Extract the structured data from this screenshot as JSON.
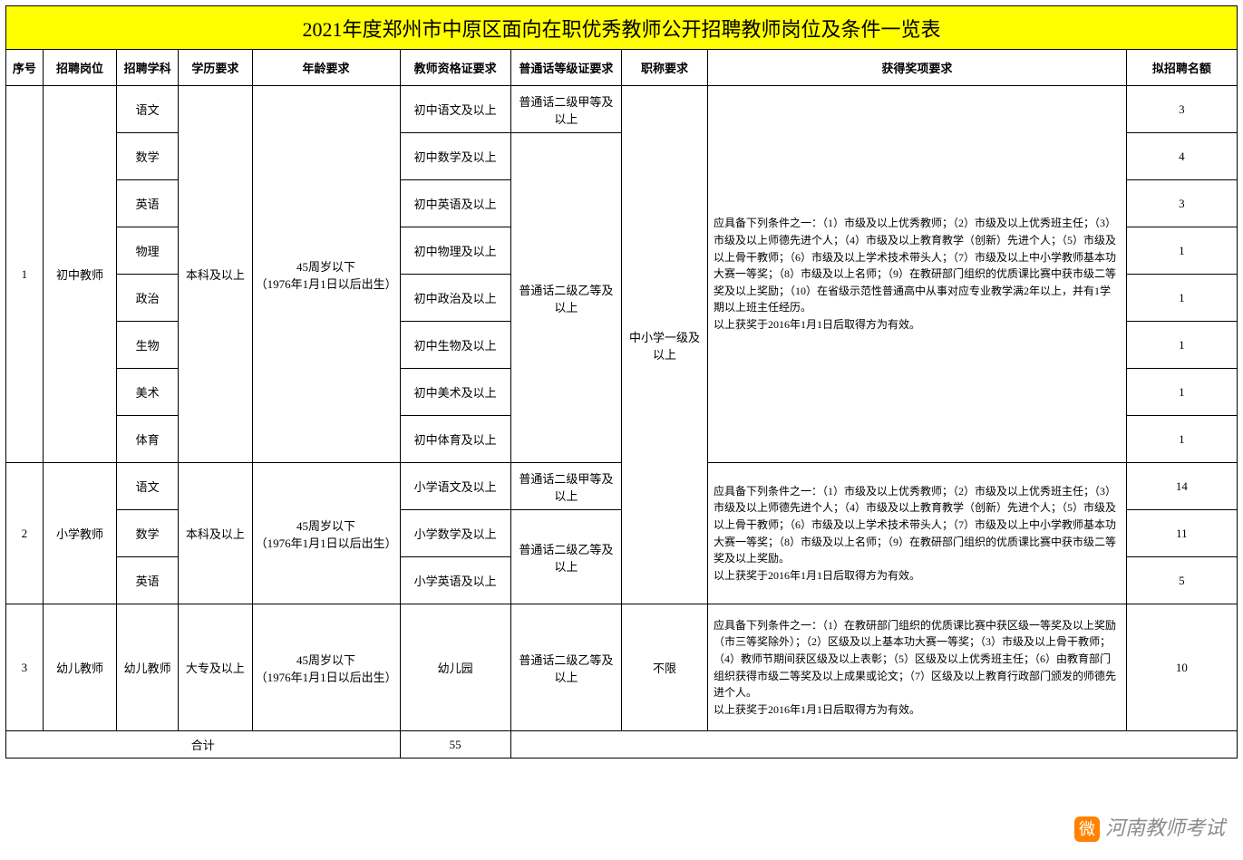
{
  "title": "2021年度郑州市中原区面向在职优秀教师公开招聘教师岗位及条件一览表",
  "columns": {
    "c1": "序号",
    "c2": "招聘岗位",
    "c3": "招聘学科",
    "c4": "学历要求",
    "c5": "年龄要求",
    "c6": "教师资格证要求",
    "c7": "普通话等级证要求",
    "c8": "职称要求",
    "c9": "获得奖项要求",
    "c10": "拟招聘名额"
  },
  "col_widths": {
    "c1": "3%",
    "c2": "6%",
    "c3": "5%",
    "c4": "6%",
    "c5": "12%",
    "c6": "9%",
    "c7": "9%",
    "c8": "7%",
    "c9": "34%",
    "c10": "9%"
  },
  "group1": {
    "seq": "1",
    "position": "初中教师",
    "edu": "本科及以上",
    "age": "45周岁以下\n（1976年1月1日以后出生）",
    "zhicheng": "中小学一级及以上",
    "award": "应具备下列条件之一：（1）市级及以上优秀教师；（2）市级及以上优秀班主任；（3）市级及以上师德先进个人；（4）市级及以上教育教学（创新）先进个人；（5）市级及以上骨干教师；（6）市级及以上学术技术带头人；（7）市级及以上中小学教师基本功大赛一等奖；（8）市级及以上名师；（9）在教研部门组织的优质课比赛中获市级二等奖及以上奖励；（10）在省级示范性普通高中从事对应专业教学满2年以上，并有1学期以上班主任经历。\n以上获奖于2016年1月1日后取得方为有效。",
    "rows": [
      {
        "subject": "语文",
        "cert": "初中语文及以上",
        "pth": "普通话二级甲等及以上",
        "quota": "3"
      },
      {
        "subject": "数学",
        "cert": "初中数学及以上",
        "pth": "",
        "quota": "4"
      },
      {
        "subject": "英语",
        "cert": "初中英语及以上",
        "pth": "",
        "quota": "3"
      },
      {
        "subject": "物理",
        "cert": "初中物理及以上",
        "pth": "",
        "quota": "1"
      },
      {
        "subject": "政治",
        "cert": "初中政治及以上",
        "pth": "",
        "quota": "1"
      },
      {
        "subject": "生物",
        "cert": "初中生物及以上",
        "pth": "",
        "quota": "1"
      },
      {
        "subject": "美术",
        "cert": "初中美术及以上",
        "pth": "",
        "quota": "1"
      },
      {
        "subject": "体育",
        "cert": "初中体育及以上",
        "pth": "",
        "quota": "1"
      }
    ],
    "pth_rest": "普通话二级乙等及以上"
  },
  "group2": {
    "seq": "2",
    "position": "小学教师",
    "edu": "本科及以上",
    "age": "45周岁以下\n（1976年1月1日以后出生）",
    "award": "应具备下列条件之一：（1）市级及以上优秀教师；（2）市级及以上优秀班主任；（3）市级及以上师德先进个人；（4）市级及以上教育教学（创新）先进个人；（5）市级及以上骨干教师；（6）市级及以上学术技术带头人；（7）市级及以上中小学教师基本功大赛一等奖；（8）市级及以上名师；（9）在教研部门组织的优质课比赛中获市级二等奖及以上奖励。\n以上获奖于2016年1月1日后取得方为有效。",
    "rows": [
      {
        "subject": "语文",
        "cert": "小学语文及以上",
        "pth": "普通话二级甲等及以上",
        "quota": "14"
      },
      {
        "subject": "数学",
        "cert": "小学数学及以上",
        "pth": "",
        "quota": "11"
      },
      {
        "subject": "英语",
        "cert": "小学英语及以上",
        "pth": "",
        "quota": "5"
      }
    ],
    "pth_rest": "普通话二级乙等及以上"
  },
  "group3": {
    "seq": "3",
    "position": "幼儿教师",
    "subject": "幼儿教师",
    "edu": "大专及以上",
    "age": "45周岁以下\n（1976年1月1日以后出生）",
    "cert": "幼儿园",
    "pth": "普通话二级乙等及以上",
    "zhicheng": "不限",
    "award": "应具备下列条件之一：（1）在教研部门组织的优质课比赛中获区级一等奖及以上奖励（市三等奖除外）；（2）区级及以上基本功大赛一等奖；（3）市级及以上骨干教师；（4）教师节期间获区级及以上表彰；（5）区级及以上优秀班主任；（6）由教育部门组织获得市级二等奖及以上成果或论文；（7）区级及以上教育行政部门颁发的师德先进个人。\n以上获奖于2016年1月1日后取得方为有效。",
    "quota": "10"
  },
  "total_label": "合计",
  "page_number": "55",
  "watermark": "河南教师考试"
}
